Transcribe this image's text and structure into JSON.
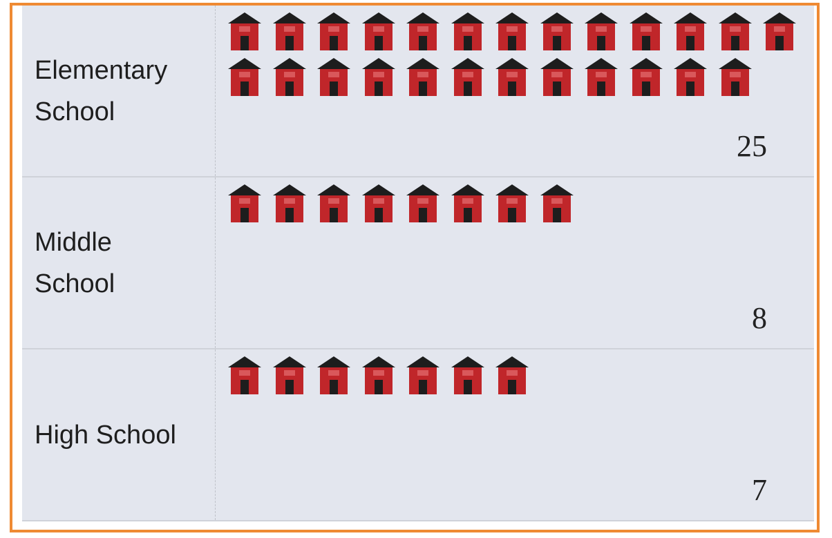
{
  "chart_data": {
    "type": "pictogram",
    "categories": [
      "Elementary School",
      "Middle School",
      "High School"
    ],
    "values": [
      25,
      8,
      7
    ],
    "color": "#c0262a"
  }
}
